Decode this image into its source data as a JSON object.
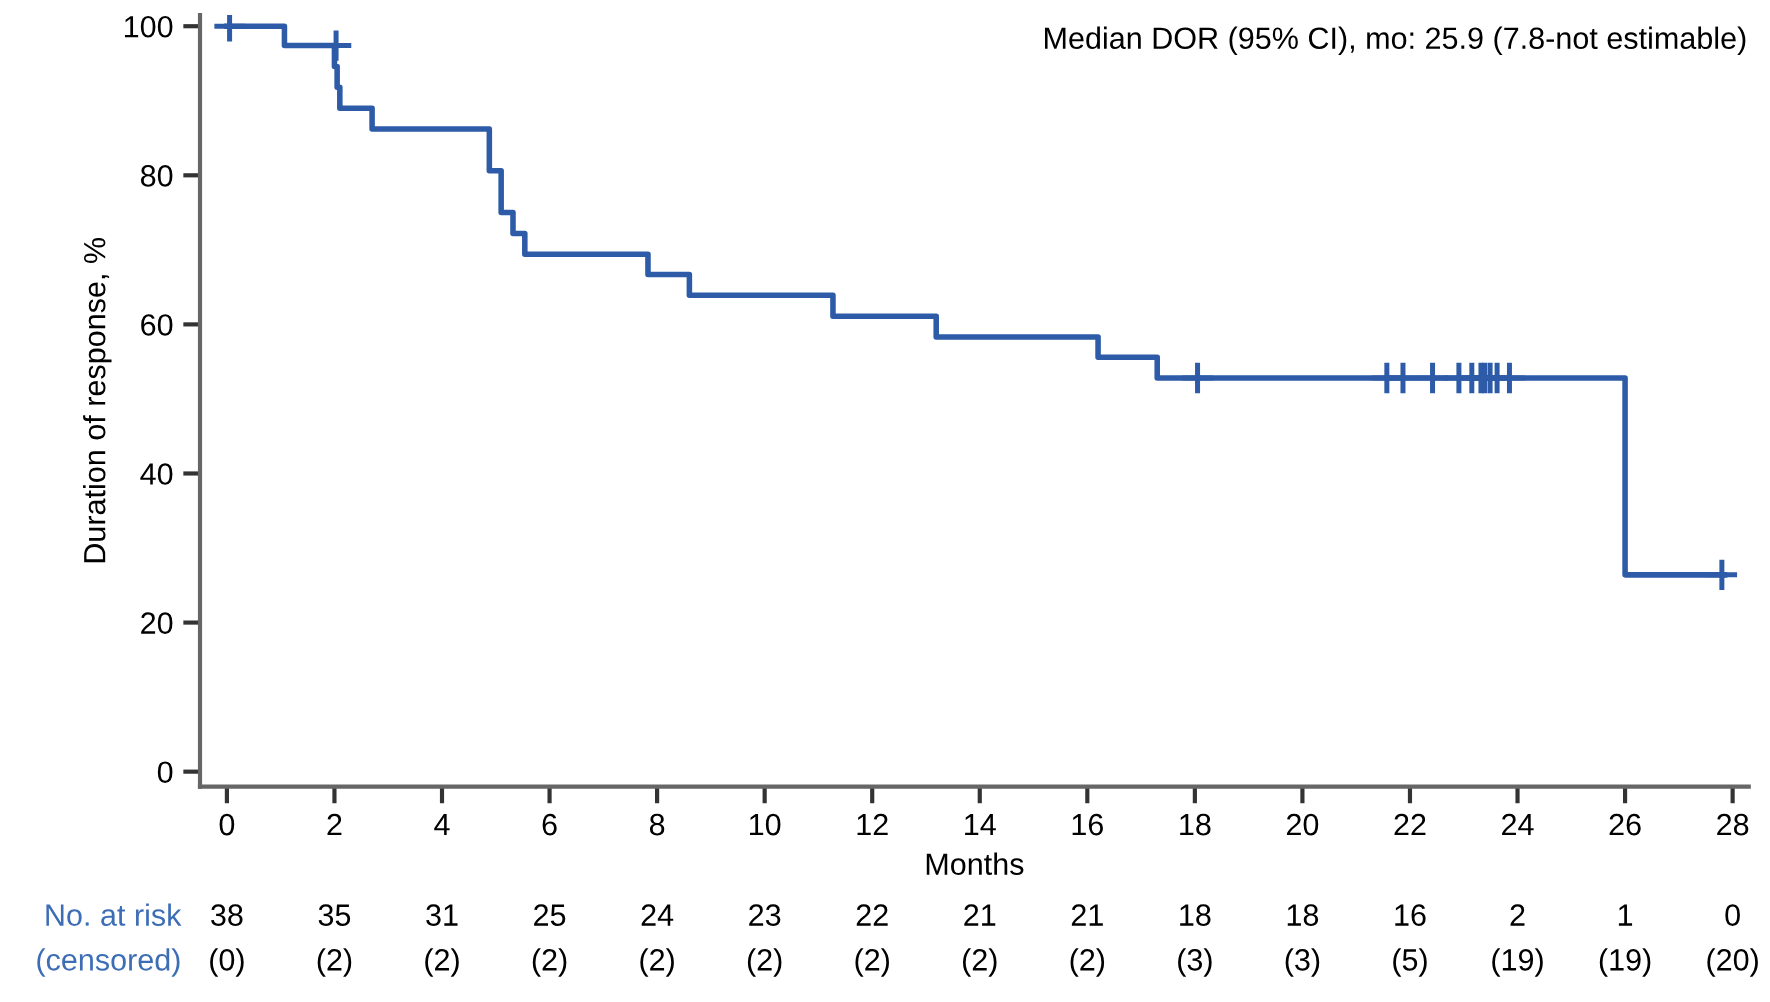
{
  "chart_data": {
    "type": "step",
    "xlabel": "Months",
    "ylabel": "Duration of response, %",
    "xlim": [
      -0.5,
      28.3
    ],
    "ylim": [
      -2,
      101.5
    ],
    "xticks": [
      0,
      2,
      4,
      6,
      8,
      10,
      12,
      14,
      16,
      18,
      20,
      22,
      24,
      26,
      28
    ],
    "yticks": [
      0,
      20,
      40,
      60,
      80,
      100
    ],
    "grid": false,
    "legend": false,
    "series": [
      {
        "color": "#2d5ba8",
        "marker": "none",
        "line_style": "solid",
        "x": [
          0,
          1.07,
          2.0,
          2.05,
          2.1,
          2.7,
          4.88,
          5.1,
          5.32,
          5.54,
          7.83,
          8.6,
          11.27,
          13.19,
          16.2,
          17.3,
          26.0,
          27.85
        ],
        "values": [
          100,
          97.4,
          94.6,
          91.8,
          89.0,
          86.2,
          80.6,
          75.0,
          72.2,
          69.4,
          66.7,
          63.9,
          61.1,
          58.3,
          55.6,
          52.8,
          26.4,
          26.4
        ]
      },
      {
        "type": "scatter",
        "color": "#2d5ba8",
        "marker": "cross",
        "x": [
          0.05,
          2.03,
          18.05,
          21.57,
          21.87,
          22.42,
          22.91,
          23.15,
          23.32,
          23.39,
          23.49,
          23.62,
          23.85,
          27.8
        ],
        "values": [
          100,
          97.4,
          52.8,
          52.8,
          52.8,
          52.8,
          52.8,
          52.8,
          52.8,
          52.8,
          52.8,
          52.8,
          52.8,
          26.4
        ]
      }
    ],
    "annotations": [
      "Median DOR (95% CI), mo: 25.9 (7.8-not estimable)",
      "No. at risk",
      "38",
      "35",
      "31",
      "25",
      "24",
      "23",
      "22",
      "21",
      "21",
      "18",
      "18",
      "16",
      "2",
      "1",
      "0",
      "(censored)",
      "(0)",
      "(2)",
      "(2)",
      "(2)",
      "(2)",
      "(2)",
      "(2)",
      "(2)",
      "(2)",
      "(3)",
      "(3)",
      "(5)",
      "(19)",
      "(19)",
      "(20)"
    ]
  }
}
